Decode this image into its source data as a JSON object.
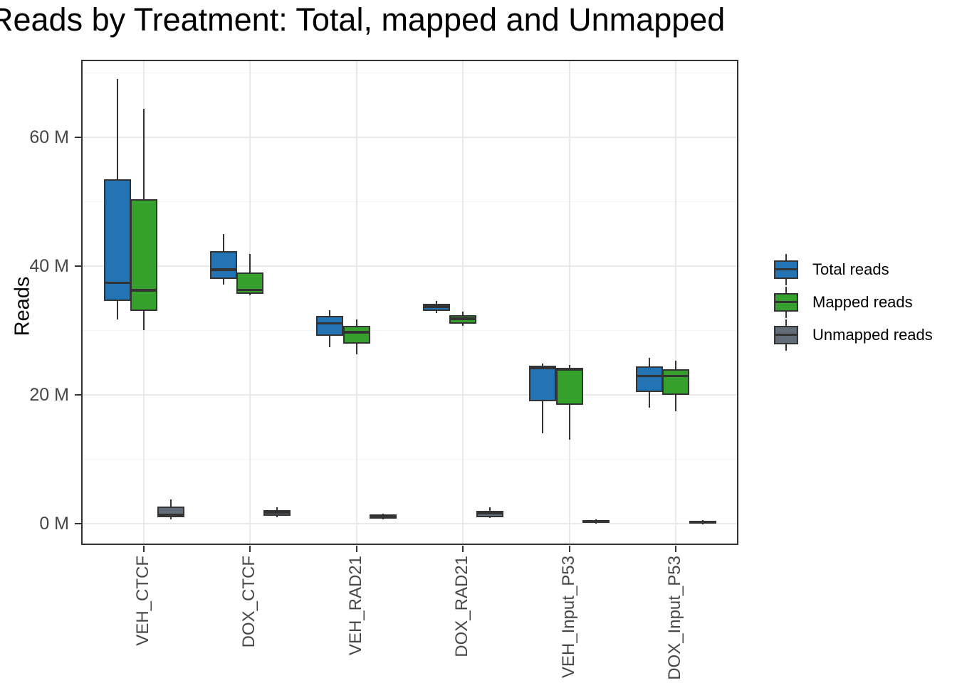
{
  "page": {
    "background": "#ffffff"
  },
  "chart_data": {
    "type": "boxplot",
    "title": "Reads by Treatment: Total, mapped and Unmapped",
    "ylabel": "Reads",
    "xlabel": "",
    "unit": "millions of reads",
    "ylim": [
      -3.3,
      72
    ],
    "grid": true,
    "legend_position": "right",
    "y_ticks": [
      {
        "value": 0,
        "label": "0 M"
      },
      {
        "value": 20,
        "label": "20 M"
      },
      {
        "value": 40,
        "label": "40 M"
      },
      {
        "value": 60,
        "label": "60 M"
      }
    ],
    "y_minor_gridlines": [
      10,
      30,
      50,
      70
    ],
    "categories": [
      "VEH_CTCF",
      "DOX_CTCF",
      "VEH_RAD21",
      "DOX_RAD21",
      "VEH_Input_P53",
      "DOX_Input_P53"
    ],
    "series": [
      {
        "name": "Total reads",
        "color": "#2274b5",
        "boxes": [
          {
            "min": 31.7,
            "q1": 34.6,
            "median": 37.4,
            "q3": 53.4,
            "max": 69.0
          },
          {
            "min": 37.1,
            "q1": 38.0,
            "median": 39.4,
            "q3": 42.3,
            "max": 44.9
          },
          {
            "min": 27.4,
            "q1": 29.2,
            "median": 31.1,
            "q3": 32.2,
            "max": 33.1
          },
          {
            "min": 32.7,
            "q1": 33.0,
            "median": 33.7,
            "q3": 34.1,
            "max": 34.6
          },
          {
            "min": 14.0,
            "q1": 19.0,
            "median": 24.2,
            "q3": 24.5,
            "max": 24.9
          },
          {
            "min": 18.0,
            "q1": 20.4,
            "median": 22.9,
            "q3": 24.4,
            "max": 25.7
          }
        ]
      },
      {
        "name": "Mapped reads",
        "color": "#35a12c",
        "boxes": [
          {
            "min": 30.0,
            "q1": 33.0,
            "median": 36.2,
            "q3": 50.3,
            "max": 64.4
          },
          {
            "min": 35.4,
            "q1": 35.7,
            "median": 36.3,
            "q3": 39.0,
            "max": 41.8
          },
          {
            "min": 26.3,
            "q1": 27.9,
            "median": 29.7,
            "q3": 30.7,
            "max": 31.7
          },
          {
            "min": 30.7,
            "q1": 31.0,
            "median": 31.8,
            "q3": 32.3,
            "max": 32.9
          },
          {
            "min": 13.0,
            "q1": 18.4,
            "median": 23.9,
            "q3": 24.2,
            "max": 24.6
          },
          {
            "min": 17.4,
            "q1": 20.0,
            "median": 22.9,
            "q3": 24.0,
            "max": 25.3
          }
        ]
      },
      {
        "name": "Unmapped reads",
        "color": "#636d79",
        "boxes": [
          {
            "min": 0.7,
            "q1": 1.0,
            "median": 1.3,
            "q3": 2.7,
            "max": 3.7
          },
          {
            "min": 1.0,
            "q1": 1.2,
            "median": 1.7,
            "q3": 2.1,
            "max": 2.5
          },
          {
            "min": 0.7,
            "q1": 0.8,
            "median": 1.0,
            "q3": 1.4,
            "max": 1.5
          },
          {
            "min": 0.9,
            "q1": 1.0,
            "median": 1.6,
            "q3": 2.0,
            "max": 2.5
          },
          {
            "min": 0.1,
            "q1": 0.15,
            "median": 0.3,
            "q3": 0.55,
            "max": 0.65
          },
          {
            "min": 0.0,
            "q1": 0.05,
            "median": 0.2,
            "q3": 0.45,
            "max": 0.55
          }
        ]
      }
    ],
    "colors": {
      "panel_border": "#333333",
      "box_border": "#333333",
      "gridline_major": "#e9e9e9",
      "gridline_minor": "#f4f4f4",
      "tick_label": "#474747"
    }
  },
  "legend": {
    "entries": [
      {
        "label": "Total reads"
      },
      {
        "label": "Mapped reads"
      },
      {
        "label": "Unmapped reads"
      }
    ]
  }
}
